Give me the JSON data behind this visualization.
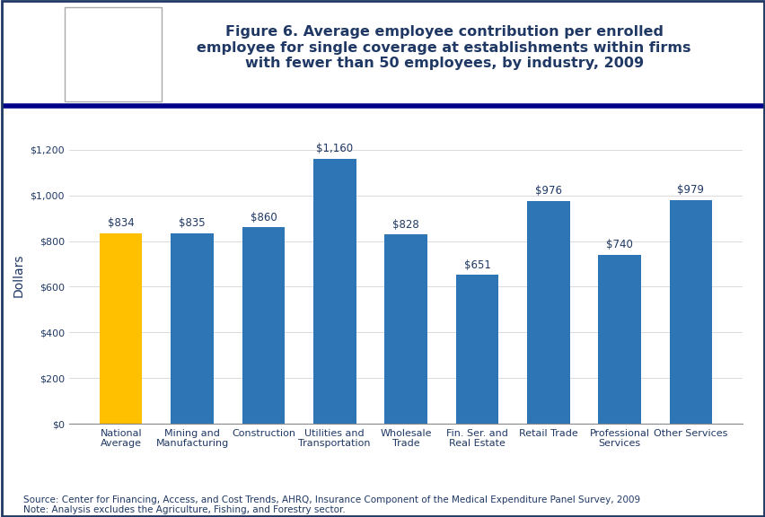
{
  "title": "Figure 6. Average employee contribution per enrolled\nemployee for single coverage at establishments within firms\nwith fewer than 50 employees, by industry, 2009",
  "categories": [
    "National\nAverage",
    "Mining and\nManufacturing",
    "Construction",
    "Utilities and\nTransportation",
    "Wholesale\nTrade",
    "Fin. Ser. and\nReal Estate",
    "Retail Trade",
    "Professional\nServices",
    "Other Services"
  ],
  "values": [
    834,
    835,
    860,
    1160,
    828,
    651,
    976,
    740,
    979
  ],
  "labels": [
    "$834",
    "$835",
    "$860",
    "$1,160",
    "$828",
    "$651",
    "$976",
    "$740",
    "$979"
  ],
  "bar_colors": [
    "#FFC000",
    "#2E75B6",
    "#2E75B6",
    "#2E75B6",
    "#2E75B6",
    "#2E75B6",
    "#2E75B6",
    "#2E75B6",
    "#2E75B6"
  ],
  "ylabel": "Dollars",
  "ylim": [
    0,
    1300
  ],
  "yticks": [
    0,
    200,
    400,
    600,
    800,
    1000,
    1200
  ],
  "ytick_labels": [
    "$0",
    "$200",
    "$400",
    "$600",
    "$800",
    "$1,000",
    "$1,200"
  ],
  "title_color": "#1F3864",
  "title_fontsize": 11.5,
  "bar_label_color": "#1F3864",
  "bar_label_fontsize": 8.5,
  "ylabel_color": "#1F3864",
  "ylabel_fontsize": 10,
  "tick_label_color": "#1F3864",
  "tick_label_fontsize": 8,
  "source_text": "Source: Center for Financing, Access, and Cost Trends, AHRQ, Insurance Component of the Medical Expenditure Panel Survey, 2009\nNote: Analysis excludes the Agriculture, Fishing, and Forestry sector.",
  "source_fontsize": 7.5,
  "source_color": "#1F3864",
  "separator_line_color": "#00008B",
  "border_color": "#1F3864",
  "bg_color": "#FFFFFF",
  "header_bg_color": "#FFFFFF",
  "logo_bg_color": "#1E90FF",
  "ahrq_box_color": "#FFFFFF"
}
